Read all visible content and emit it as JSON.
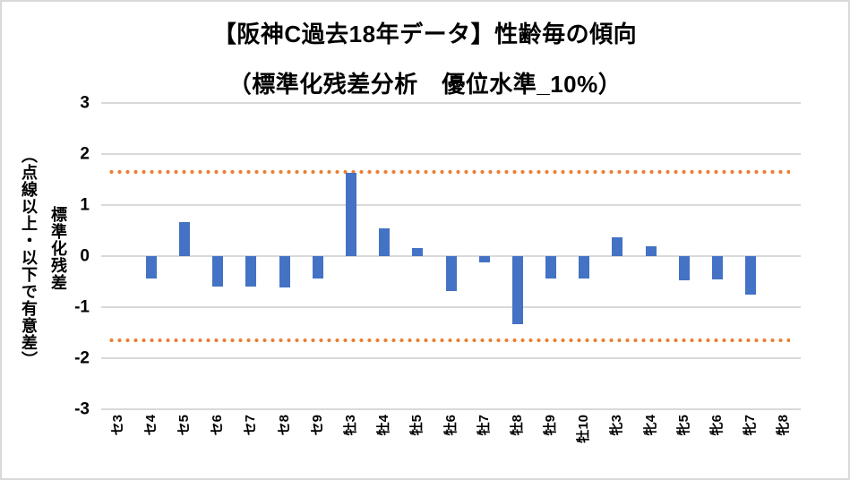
{
  "chart_title": {
    "line1": "【阪神C過去18年データ】性齢毎の傾向",
    "line2": "（標準化残差分析　優位水準_10%）"
  },
  "y_axis": {
    "title_main": "標準化残差",
    "title_sub": "（点線以上・以下で有意差）"
  },
  "chart_data": {
    "type": "bar",
    "title": "【阪神C過去18年データ】性齢毎の傾向（標準化残差分析　優位水準_10%）",
    "xlabel": "",
    "ylabel": "標準化残差（点線以上・以下で有意差）",
    "categories": [
      "セ3",
      "セ4",
      "セ5",
      "セ6",
      "セ7",
      "セ8",
      "セ9",
      "牡3",
      "牡4",
      "牡5",
      "牡6",
      "牡7",
      "牡8",
      "牡9",
      "牡10",
      "牝3",
      "牝4",
      "牝5",
      "牝6",
      "牝7",
      "牝8"
    ],
    "values": [
      0,
      -0.43,
      0.66,
      -0.6,
      -0.6,
      -0.61,
      -0.43,
      1.63,
      0.55,
      0.15,
      -0.68,
      -0.12,
      -1.33,
      -0.44,
      -0.44,
      0.37,
      0.2,
      -0.47,
      -0.46,
      -0.75,
      0
    ],
    "ylim": [
      -3,
      3
    ],
    "yticks": [
      3,
      2,
      1,
      0,
      -1,
      -2,
      -3
    ],
    "thresholds": {
      "upper": 1.645,
      "lower": -1.645
    },
    "grid": true,
    "legend": false,
    "colors": {
      "bar": "#4472C4",
      "threshold": "#ED7D31",
      "gridline": "#D9D9D9",
      "border": "#D9D9D9",
      "text": "#000000",
      "background": "#FFFFFF"
    }
  }
}
